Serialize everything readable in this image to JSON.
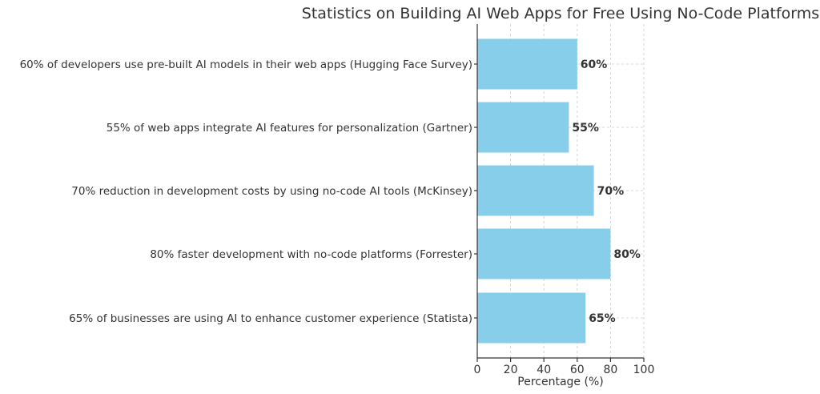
{
  "chart_data": {
    "type": "bar",
    "orientation": "horizontal",
    "title": "Statistics on Building AI Web Apps for Free Using No-Code Platforms",
    "xlabel": "Percentage (%)",
    "ylabel": "",
    "xlim": [
      0,
      100
    ],
    "xticks": [
      0,
      20,
      40,
      60,
      80,
      100
    ],
    "grid": true,
    "bar_color": "#87CEEB",
    "categories": [
      "60% of developers use pre-built AI models in their web apps (Hugging Face Survey)",
      "55% of web apps integrate AI features for personalization (Gartner)",
      "70% reduction in development costs by using no-code AI tools (McKinsey)",
      "80% faster development with no-code platforms (Forrester)",
      "65% of businesses are using AI to enhance customer experience (Statista)"
    ],
    "values": [
      60,
      55,
      70,
      80,
      65
    ],
    "data_labels": [
      "60%",
      "55%",
      "70%",
      "80%",
      "65%"
    ]
  }
}
